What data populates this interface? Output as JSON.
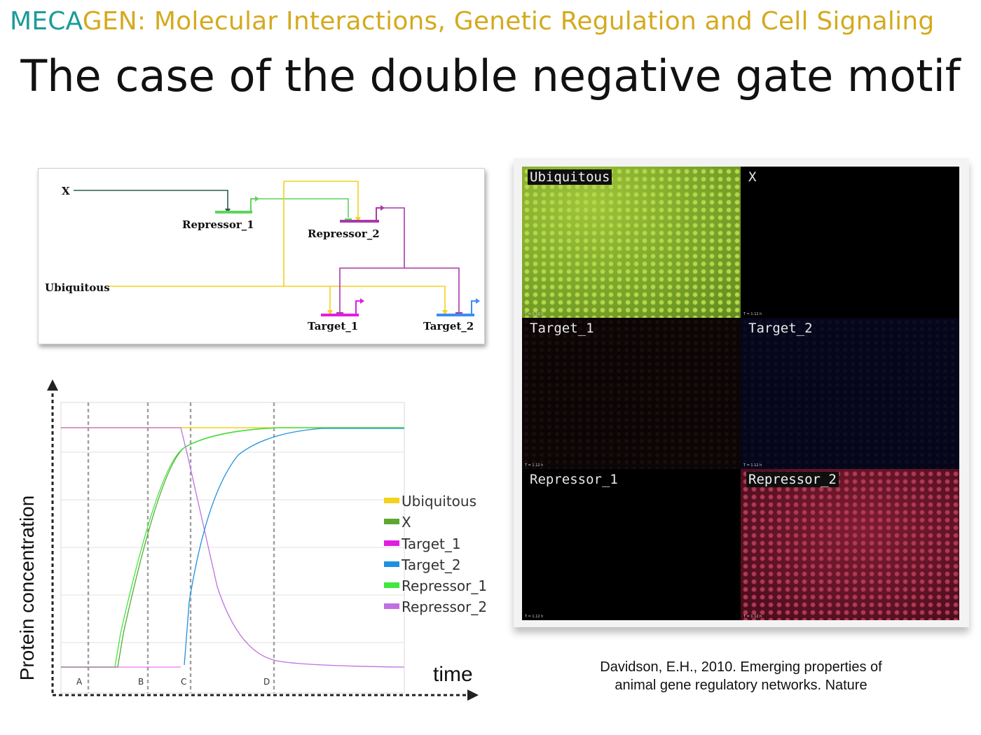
{
  "header": {
    "brand_teal": "MECA",
    "brand_rest": "GEN: Molecular Interactions, Genetic Regulation and Cell Signaling"
  },
  "title": "The case of the double negative gate motif",
  "colors": {
    "teal": "#1b9c9a",
    "gold": "#d4aa1e",
    "ubiquitous": "#f2d21c",
    "x": "#2e5a50",
    "repressor_1": "#5dd45d",
    "repressor_2": "#a83aa8",
    "target_1": "#e01ee0",
    "target_2": "#3a8ef2"
  },
  "network": {
    "labels": {
      "x": "X",
      "ubiquitous": "Ubiquitous",
      "repressor_1": "Repressor_1",
      "repressor_2": "Repressor_2",
      "target_1": "Target_1",
      "target_2": "Target_2"
    }
  },
  "plot": {
    "ylabel": "Protein concentration",
    "xlabel": "time",
    "phases": [
      "A",
      "B",
      "C",
      "D"
    ]
  },
  "chart_data": {
    "type": "line",
    "xlabel": "time",
    "ylabel": "Protein concentration",
    "legend_position": "right",
    "grid": true,
    "phase_markers": [
      "A",
      "B",
      "C",
      "D"
    ],
    "series": [
      {
        "name": "Ubiquitous",
        "color": "#f2d21c"
      },
      {
        "name": "X",
        "color": "#5aa832"
      },
      {
        "name": "Target_1",
        "color": "#e01ee0"
      },
      {
        "name": "Target_2",
        "color": "#1e90e0"
      },
      {
        "name": "Repressor_1",
        "color": "#3ee83e"
      },
      {
        "name": "Repressor_2",
        "color": "#c070e0"
      }
    ]
  },
  "panels": [
    {
      "label": "Ubiquitous",
      "boxed": true
    },
    {
      "label": "X",
      "boxed": false
    },
    {
      "label": "Target_1",
      "boxed": false
    },
    {
      "label": "Target_2",
      "boxed": false
    },
    {
      "label": "Repressor_1",
      "boxed": false
    },
    {
      "label": "Repressor_2",
      "boxed": true
    }
  ],
  "panel_stamp": "T = 1.12 h",
  "citation": {
    "line1": "Davidson, E.H., 2010. Emerging properties of",
    "line2": "animal gene regulatory networks. Nature"
  }
}
